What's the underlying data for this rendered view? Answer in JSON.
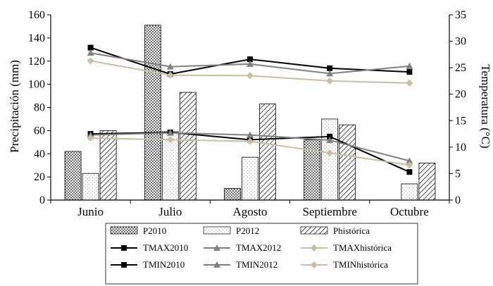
{
  "chart_data": {
    "type": "bar",
    "categories": [
      "Junio",
      "Julio",
      "Agosto",
      "Septiembre",
      "Octubre"
    ],
    "ylabel": "Precipitación (mm)",
    "ylim": [
      0,
      160
    ],
    "y_ticks": [
      "0",
      "20",
      "40",
      "60",
      "80",
      "100",
      "120",
      "140",
      "160"
    ],
    "y2label": "Temperatura (°C)",
    "y2lim": [
      0,
      35
    ],
    "y2_ticks": [
      "0",
      "5",
      "10",
      "15",
      "20",
      "25",
      "30",
      "35"
    ],
    "bar_series": [
      {
        "name": "P2010",
        "values": [
          42,
          151,
          10,
          52,
          0
        ],
        "pattern": "dots"
      },
      {
        "name": "P2012",
        "values": [
          23,
          59,
          37,
          70,
          14
        ],
        "pattern": "sparse-dots"
      },
      {
        "name": "Phistórica",
        "values": [
          60,
          93,
          83,
          65,
          32
        ],
        "pattern": "diagonal-hatch"
      }
    ],
    "line_series": [
      {
        "name": "TMAX2010",
        "values": [
          28.8,
          23.8,
          26.6,
          24.9,
          24.2
        ],
        "color": "#000000",
        "marker": "square"
      },
      {
        "name": "TMAX2012",
        "values": [
          27.8,
          25.2,
          25.7,
          23.9,
          25.3
        ],
        "color": "#808080",
        "marker": "triangle"
      },
      {
        "name": "TMAXhistórica",
        "values": [
          26.3,
          23.6,
          23.5,
          22.5,
          22.1
        ],
        "color": "#c8bfa0",
        "marker": "diamond"
      },
      {
        "name": "TMIN2010",
        "values": [
          12.5,
          12.8,
          11.4,
          12.0,
          5.3
        ],
        "color": "#000000",
        "marker": "square"
      },
      {
        "name": "TMIN2012",
        "values": [
          12.3,
          12.7,
          12.3,
          11.3,
          7.4
        ],
        "color": "#808080",
        "marker": "triangle"
      },
      {
        "name": "TMINhistórica",
        "values": [
          11.7,
          11.4,
          11.1,
          8.9,
          6.6
        ],
        "color": "#c8bfa0",
        "marker": "diamond"
      }
    ],
    "grid": false,
    "legend_position": "bottom"
  }
}
